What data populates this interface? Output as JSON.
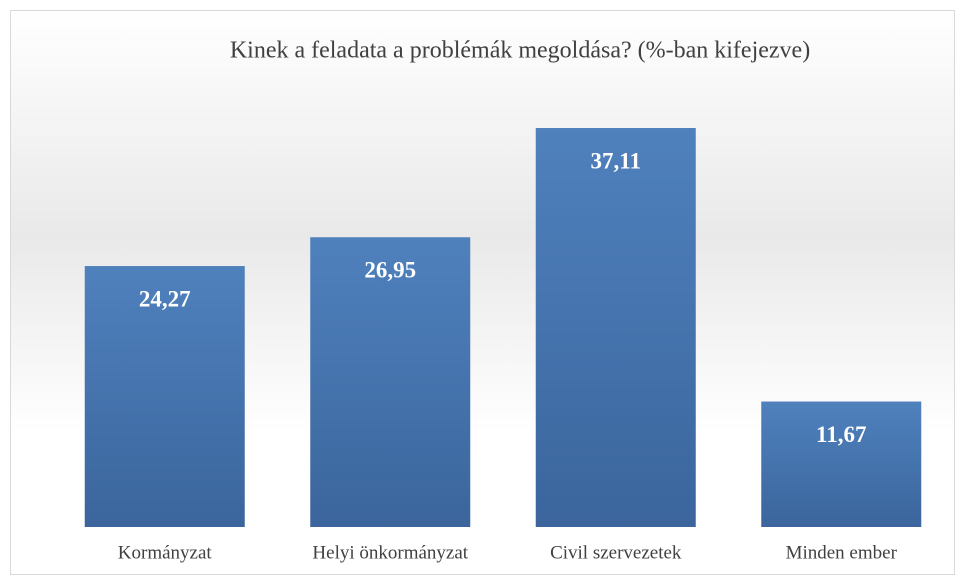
{
  "chart_data": {
    "type": "bar",
    "title": "Kinek a feladata a problémák megoldása? (%-ban kifejezve)",
    "categories": [
      "Kormányzat",
      "Helyi önkormányzat",
      "Civil szervezetek",
      "Minden ember"
    ],
    "values": [
      24.27,
      26.95,
      37.11,
      11.67
    ],
    "value_labels": [
      "24,27",
      "26,95",
      "37,11",
      "11,67"
    ],
    "color": "#4a7ab8"
  }
}
